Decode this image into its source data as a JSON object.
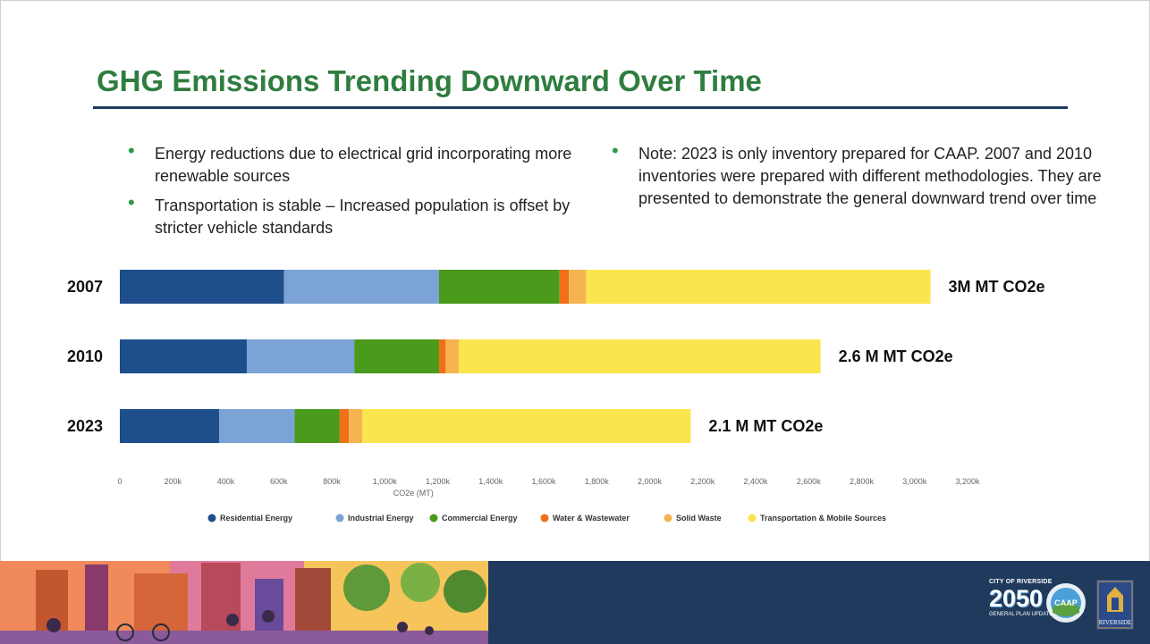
{
  "slide": {
    "title": "GHG Emissions Trending Downward Over Time",
    "bullets_left": [
      "Energy reductions due to electrical grid incorporating more renewable sources",
      "Transportation is stable – Increased population is offset by stricter vehicle standards"
    ],
    "bullets_right": [
      "Note: 2023 is only inventory prepared for CAAP. 2007 and 2010 inventories were prepared with different methodologies. They are presented to demonstrate the general downward trend over time"
    ]
  },
  "chart_data": {
    "type": "bar",
    "orientation": "horizontal",
    "stacked": true,
    "categories": [
      "2007",
      "2010",
      "2023"
    ],
    "series": [
      {
        "name": "Residential Energy",
        "color": "#1f4e8c",
        "values": [
          620000,
          480000,
          375000
        ]
      },
      {
        "name": "Industrial Energy",
        "color": "#7ba3d6",
        "values": [
          585000,
          405000,
          285000
        ]
      },
      {
        "name": "Commercial Energy",
        "color": "#4a9a1c",
        "values": [
          455000,
          320000,
          170000
        ]
      },
      {
        "name": "Water & Wastewater",
        "color": "#f07018",
        "values": [
          35000,
          25000,
          35000
        ]
      },
      {
        "name": "Solid Waste",
        "color": "#f5b450",
        "values": [
          65000,
          50000,
          50000
        ]
      },
      {
        "name": "Transportation & Mobile Sources",
        "color": "#fbe54e",
        "values": [
          1300000,
          1365000,
          1240000
        ]
      }
    ],
    "total_labels": [
      "3M MT CO2e",
      "2.6 M MT CO2e",
      "2.1 M MT CO2e"
    ],
    "xlabel": "CO2e (MT)",
    "xlim": [
      0,
      3200000
    ],
    "xticks": [
      0,
      200000,
      400000,
      600000,
      800000,
      1000000,
      1200000,
      1400000,
      1600000,
      1800000,
      2000000,
      2200000,
      2400000,
      2600000,
      2800000,
      3000000,
      3200000
    ],
    "xtick_labels": [
      "0",
      "200k",
      "400k",
      "600k",
      "800k",
      "1,000k",
      "1,200k",
      "1,400k",
      "1,600k",
      "1,800k",
      "2,000k",
      "2,200k",
      "2,400k",
      "2,600k",
      "2,800k",
      "3,000k",
      "3,200k"
    ],
    "grid": false,
    "legend_position": "bottom"
  },
  "footer": {
    "logo_riverside_line1": "CITY OF RIVERSIDE",
    "logo_riverside_year": "2050",
    "logo_riverside_line3": "GENERAL PLAN UPDATE",
    "logo_caap": "CAAP",
    "logo_city": "RIVERSIDE"
  },
  "colors": {
    "title_green": "#2f7d3f",
    "rule_navy": "#1f3b5c",
    "bullet_green": "#2f9a44",
    "footer_navy": "#1f3a5c"
  }
}
